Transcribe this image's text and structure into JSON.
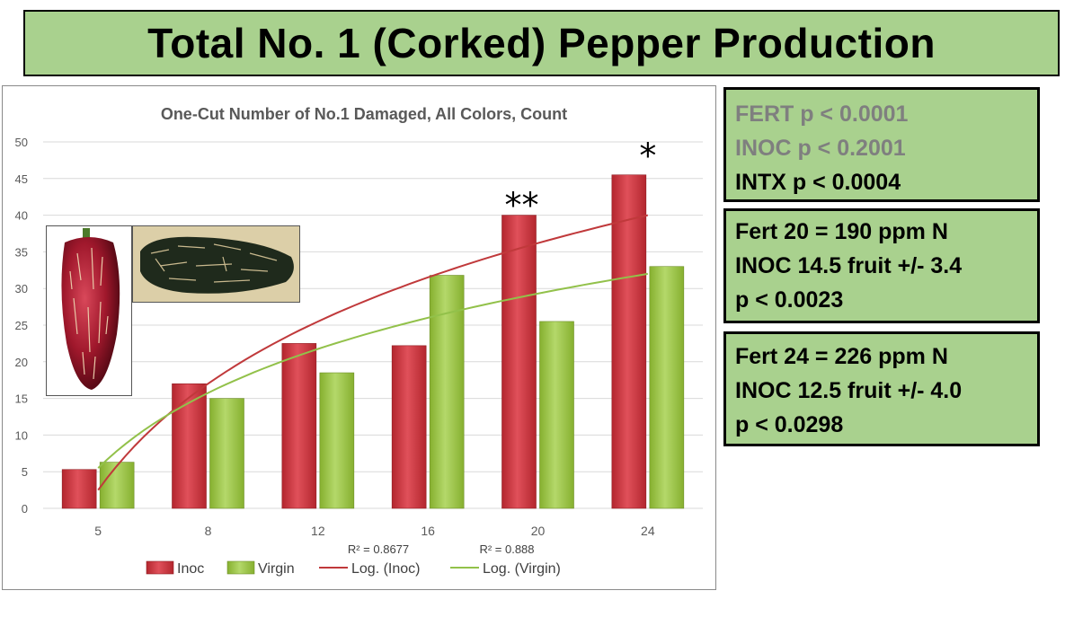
{
  "header": {
    "title": "Total No. 1 (Corked) Pepper Production"
  },
  "colors": {
    "inoc": "#c8363d",
    "virgin": "#9bc33f",
    "log_inoc": "#c0393b",
    "log_virgin": "#92c14a",
    "box_green": "#a9d18e"
  },
  "chart_data": {
    "type": "bar",
    "title": "One-Cut Number of No.1 Damaged, All Colors, Count",
    "categories": [
      "5",
      "8",
      "12",
      "16",
      "20",
      "24"
    ],
    "series": [
      {
        "name": "Inoc",
        "values": [
          5.3,
          17,
          22.5,
          22.2,
          40,
          45.5
        ],
        "color": "#c8363d"
      },
      {
        "name": "Virgin",
        "values": [
          6.3,
          15,
          18.5,
          31.8,
          25.5,
          33
        ],
        "color": "#9bc33f"
      }
    ],
    "trendlines": [
      {
        "name": "Log. (Inoc)",
        "type": "logarithmic",
        "start": 2.5,
        "end": 40,
        "r2_label": "R² = 0.8677",
        "color": "#c0393b"
      },
      {
        "name": "Log. (Virgin)",
        "type": "logarithmic",
        "start": 5.5,
        "end": 32,
        "r2_label": "R² = 0.888",
        "color": "#92c14a"
      }
    ],
    "significance": [
      {
        "category": "20",
        "label": "**"
      },
      {
        "category": "24",
        "label": "*"
      }
    ],
    "ylim": [
      0,
      50
    ],
    "yticks": [
      "0",
      "5",
      "10",
      "15",
      "20",
      "25",
      "30",
      "35",
      "40",
      "45",
      "50"
    ],
    "grid": true,
    "legend_position": "bottom",
    "legend": [
      "Inoc",
      "Virgin",
      "Log. (Inoc)",
      "Log. (Virgin)"
    ]
  },
  "stats": {
    "box1": [
      "FERT p < 0.0001",
      "INOC p < 0.2001",
      "INTX p < 0.0004"
    ],
    "box2": [
      "Fert 20 = 190 ppm N",
      "INOC  14.5 fruit +/- 3.4",
      "p < 0.0023"
    ],
    "box3": [
      "Fert 24 = 226 ppm N",
      "INOC  12.5 fruit +/- 4.0",
      "p < 0.0298"
    ]
  }
}
